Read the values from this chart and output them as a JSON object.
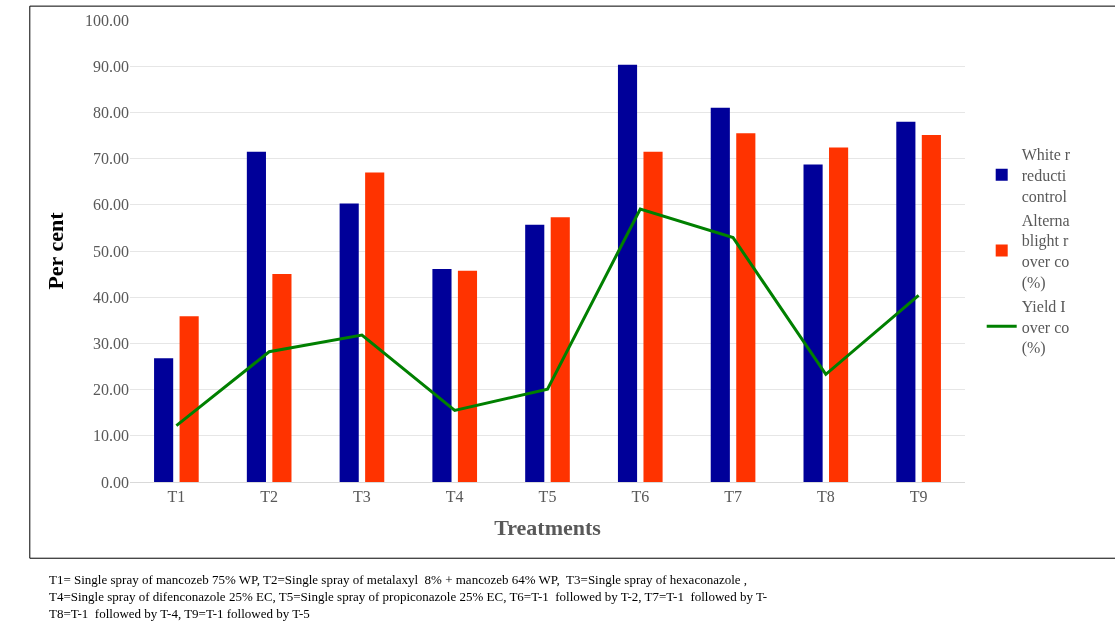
{
  "chart_data": {
    "type": "bar",
    "xlabel": "Treatments",
    "ylabel": "Per cent",
    "categories": [
      "T1",
      "T2",
      "T3",
      "T4",
      "T5",
      "T6",
      "T7",
      "T8",
      "T9"
    ],
    "series": [
      {
        "name": "White r\nreducti\ncontrol",
        "color": "#000099",
        "values": [
          26.8,
          71.5,
          60.3,
          46.1,
          55.7,
          90.3,
          81.0,
          68.7,
          78.0
        ]
      },
      {
        "name": "Alterna\nblight r\nover co\n(%)",
        "color": "#ff3300",
        "values": [
          35.9,
          45.0,
          67.0,
          45.7,
          57.3,
          71.5,
          75.5,
          72.4,
          75.1
        ]
      },
      {
        "name": "Yield I\nover co\n(%)",
        "type": "line",
        "color": "#008000",
        "values": [
          12.2,
          28.2,
          31.8,
          15.5,
          20.1,
          59.1,
          52.9,
          23.3,
          40.4
        ]
      }
    ],
    "ylim": [
      0,
      100
    ],
    "yticks": [
      {
        "value": 0,
        "label": "0.00"
      },
      {
        "value": 10,
        "label": "10.00"
      },
      {
        "value": 20,
        "label": "20.00"
      },
      {
        "value": 30,
        "label": "30.00"
      },
      {
        "value": 40,
        "label": "40.00"
      },
      {
        "value": 50,
        "label": "50.00"
      },
      {
        "value": 60,
        "label": "60.00"
      },
      {
        "value": 70,
        "label": "70.00"
      },
      {
        "value": 80,
        "label": "80.00"
      },
      {
        "value": 90,
        "label": "90.00"
      },
      {
        "value": 100,
        "label": "100.00"
      }
    ],
    "grid": "y",
    "legend": "right",
    "marker": "none",
    "line_style": "solid",
    "annotations": [
      "T1= Single spray of mancozeb 75% WP, T2=Single spray of metalaxyl  8% + mancozeb 64% WP,  T3=Single spray of hexaconazole ,\nT4=Single spray of difenconazole 25% EC, T5=Single spray of propiconazole 25% EC, T6=T-1  followed by T-2, T7=T-1  followed by T-\nT8=T-1  followed by T-4, T9=T-1 followed by T-5"
    ]
  }
}
